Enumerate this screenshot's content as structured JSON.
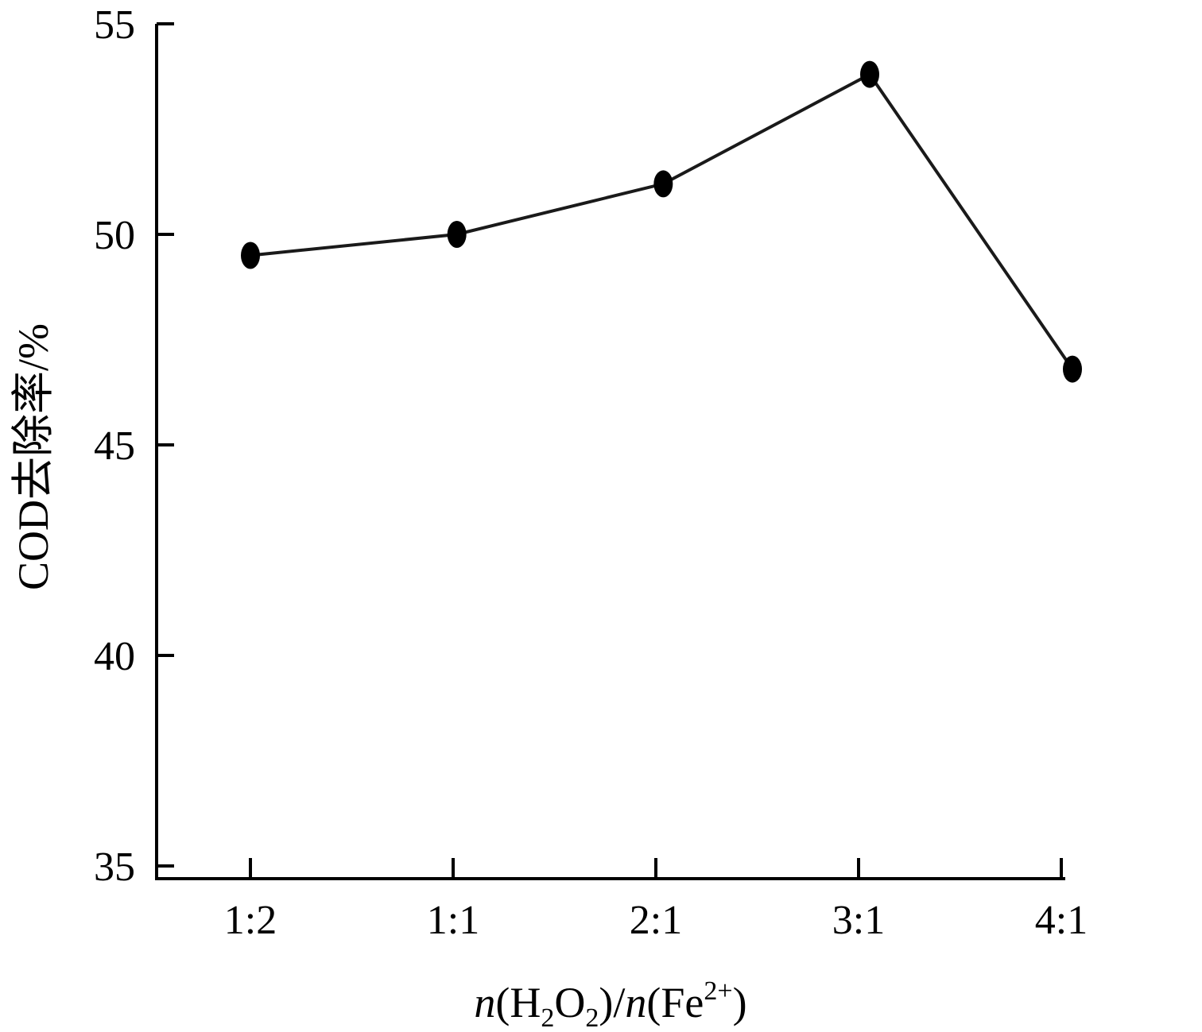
{
  "chart_data": {
    "type": "line",
    "title": "",
    "categories": [
      "1:2",
      "1:1",
      "2:1",
      "3:1",
      "4:1"
    ],
    "series": [
      {
        "values": [
          49.5,
          50.0,
          51.2,
          53.8,
          46.8
        ]
      }
    ],
    "ylabel": "COD去除率/%",
    "xlabel": {
      "prefix": "n",
      "open1": "(H",
      "sub1": "2",
      "mid1": "O",
      "sub2": "2",
      "mid2": ")/",
      "n2": "n",
      "open2": "(Fe",
      "sup": "2+",
      "close": ")"
    },
    "ylim": [
      35,
      55
    ],
    "yticks": [
      35,
      40,
      45,
      50,
      55
    ],
    "grid": false,
    "colors": {
      "line": "#1a1a1a",
      "marker": "#000000",
      "axis": "#000000"
    }
  }
}
